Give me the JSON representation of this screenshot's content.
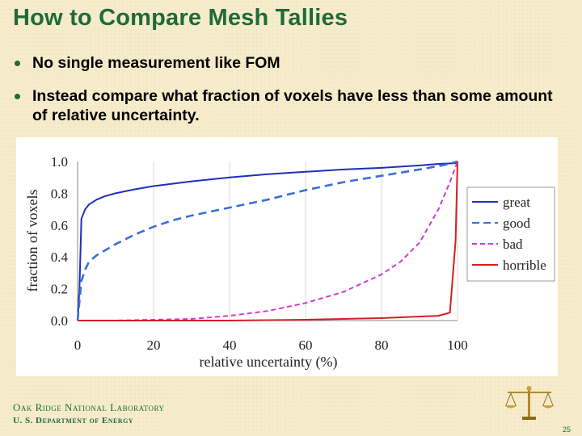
{
  "slide": {
    "title": "How to Compare Mesh Tallies",
    "bullets": [
      "No single measurement like FOM",
      "Instead compare what fraction of voxels have less than some amount of relative uncertainty."
    ],
    "footer": {
      "org": "Oak Ridge National Laboratory",
      "dept": "U. S. Department of Energy",
      "page_number": "25"
    },
    "logo_icon": "balance-scale-icon"
  },
  "chart_data": {
    "type": "line",
    "xlabel": "relative uncertainty (%)",
    "ylabel": "fraction of voxels",
    "xlim": [
      0,
      100
    ],
    "ylim": [
      0,
      1.0
    ],
    "x_ticks": [
      "0",
      "20",
      "40",
      "60",
      "80",
      "100"
    ],
    "y_ticks": [
      "0.0",
      "0.2",
      "0.4",
      "0.6",
      "0.8",
      "1.0"
    ],
    "grid": "vertical",
    "legend_position": "right",
    "series": [
      {
        "name": "great",
        "color": "#1f2fb8",
        "style": "solid",
        "points": [
          [
            0,
            0
          ],
          [
            0.5,
            0.2
          ],
          [
            1,
            0.64
          ],
          [
            2,
            0.7
          ],
          [
            3,
            0.73
          ],
          [
            5,
            0.76
          ],
          [
            7,
            0.78
          ],
          [
            10,
            0.8
          ],
          [
            15,
            0.825
          ],
          [
            20,
            0.845
          ],
          [
            30,
            0.875
          ],
          [
            40,
            0.9
          ],
          [
            50,
            0.92
          ],
          [
            60,
            0.935
          ],
          [
            70,
            0.95
          ],
          [
            80,
            0.96
          ],
          [
            90,
            0.975
          ],
          [
            95,
            0.985
          ],
          [
            100,
            0.99
          ]
        ]
      },
      {
        "name": "good",
        "color": "#3a6fd8",
        "style": "dashed",
        "points": [
          [
            0,
            0
          ],
          [
            0.5,
            0.12
          ],
          [
            1,
            0.25
          ],
          [
            2,
            0.32
          ],
          [
            3,
            0.37
          ],
          [
            5,
            0.41
          ],
          [
            10,
            0.48
          ],
          [
            15,
            0.54
          ],
          [
            20,
            0.59
          ],
          [
            25,
            0.63
          ],
          [
            30,
            0.66
          ],
          [
            40,
            0.71
          ],
          [
            50,
            0.76
          ],
          [
            60,
            0.82
          ],
          [
            70,
            0.87
          ],
          [
            80,
            0.91
          ],
          [
            90,
            0.95
          ],
          [
            97,
            0.98
          ],
          [
            100,
            1.0
          ]
        ]
      },
      {
        "name": "bad",
        "color": "#d23ad2",
        "style": "dashed",
        "points": [
          [
            0,
            0
          ],
          [
            10,
            0
          ],
          [
            20,
            0.005
          ],
          [
            30,
            0.01
          ],
          [
            40,
            0.03
          ],
          [
            50,
            0.06
          ],
          [
            60,
            0.11
          ],
          [
            70,
            0.18
          ],
          [
            80,
            0.29
          ],
          [
            85,
            0.37
          ],
          [
            90,
            0.49
          ],
          [
            95,
            0.7
          ],
          [
            98,
            0.87
          ],
          [
            100,
            1.0
          ]
        ]
      },
      {
        "name": "horrible",
        "color": "#d42020",
        "style": "solid",
        "points": [
          [
            0,
            0
          ],
          [
            20,
            0
          ],
          [
            40,
            0
          ],
          [
            60,
            0.005
          ],
          [
            80,
            0.015
          ],
          [
            95,
            0.03
          ],
          [
            98,
            0.05
          ],
          [
            99.5,
            0.5
          ],
          [
            100,
            1.0
          ]
        ]
      }
    ]
  }
}
